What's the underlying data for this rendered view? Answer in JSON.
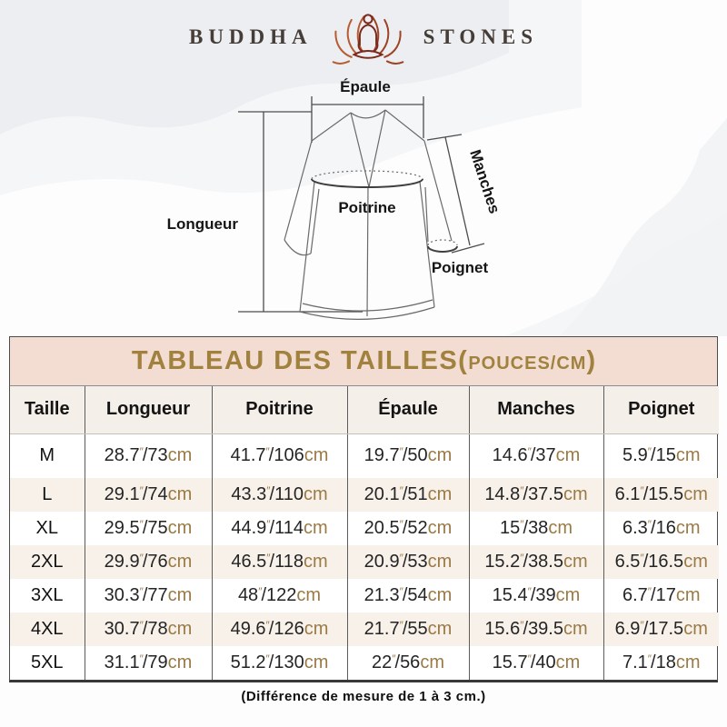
{
  "brand": {
    "left": "BUDDHA",
    "right": "STONES"
  },
  "diagram": {
    "labels": {
      "epaule": "Épaule",
      "longueur": "Longueur",
      "poitrine": "Poitrine",
      "manches": "Manches",
      "poignet": "Poignet"
    }
  },
  "table_title": {
    "main": "TABLEAU DES TAILLES(",
    "unit": "POUCES/CM",
    "close": ")"
  },
  "chart_data": {
    "type": "table",
    "title": "TABLEAU DES TAILLES (POUCES/CM)",
    "value_format": "pouces\" / cm",
    "columns": [
      "Taille",
      "Longueur",
      "Poitrine",
      "Épaule",
      "Manches",
      "Poignet"
    ],
    "units": {
      "inch": "″",
      "slash": "/",
      "cm": "cm"
    },
    "rows": [
      {
        "size": "M",
        "values": [
          [
            "28.7",
            "73"
          ],
          [
            "41.7",
            "106"
          ],
          [
            "19.7",
            "50"
          ],
          [
            "14.6",
            "37"
          ],
          [
            "5.9",
            "15"
          ]
        ]
      },
      {
        "size": "L",
        "values": [
          [
            "29.1",
            "74"
          ],
          [
            "43.3",
            "110"
          ],
          [
            "20.1",
            "51"
          ],
          [
            "14.8",
            "37.5"
          ],
          [
            "6.1",
            "15.5"
          ]
        ]
      },
      {
        "size": "XL",
        "values": [
          [
            "29.5",
            "75"
          ],
          [
            "44.9",
            "114"
          ],
          [
            "20.5",
            "52"
          ],
          [
            "15",
            "38"
          ],
          [
            "6.3",
            "16"
          ]
        ]
      },
      {
        "size": "2XL",
        "values": [
          [
            "29.9",
            "76"
          ],
          [
            "46.5",
            "118"
          ],
          [
            "20.9",
            "53"
          ],
          [
            "15.2",
            "38.5"
          ],
          [
            "6.5",
            "16.5"
          ]
        ]
      },
      {
        "size": "3XL",
        "values": [
          [
            "30.3",
            "77"
          ],
          [
            "48",
            "122"
          ],
          [
            "21.3",
            "54"
          ],
          [
            "15.4",
            "39"
          ],
          [
            "6.7",
            "17"
          ]
        ]
      },
      {
        "size": "4XL",
        "values": [
          [
            "30.7",
            "78"
          ],
          [
            "49.6",
            "126"
          ],
          [
            "21.7",
            "55"
          ],
          [
            "15.6",
            "39.5"
          ],
          [
            "6.9",
            "17.5"
          ]
        ]
      },
      {
        "size": "5XL",
        "values": [
          [
            "31.1",
            "79"
          ],
          [
            "51.2",
            "130"
          ],
          [
            "22",
            "56"
          ],
          [
            "15.7",
            "40"
          ],
          [
            "7.1",
            "18"
          ]
        ]
      }
    ],
    "footnote": "(Différence de mesure de 1 à 3 cm.)"
  },
  "colors": {
    "accent_gold": "#9a7a45",
    "title_text_gold": "#a0813e",
    "title_bar_bg": "#f3ddd2",
    "header_row_bg": "#f4efe9",
    "alt_row_bg": "#f8f1ea",
    "logo_dark_red": "#7c2a1c",
    "logo_orange": "#b65c32",
    "line_gray": "#6a6a6a"
  }
}
